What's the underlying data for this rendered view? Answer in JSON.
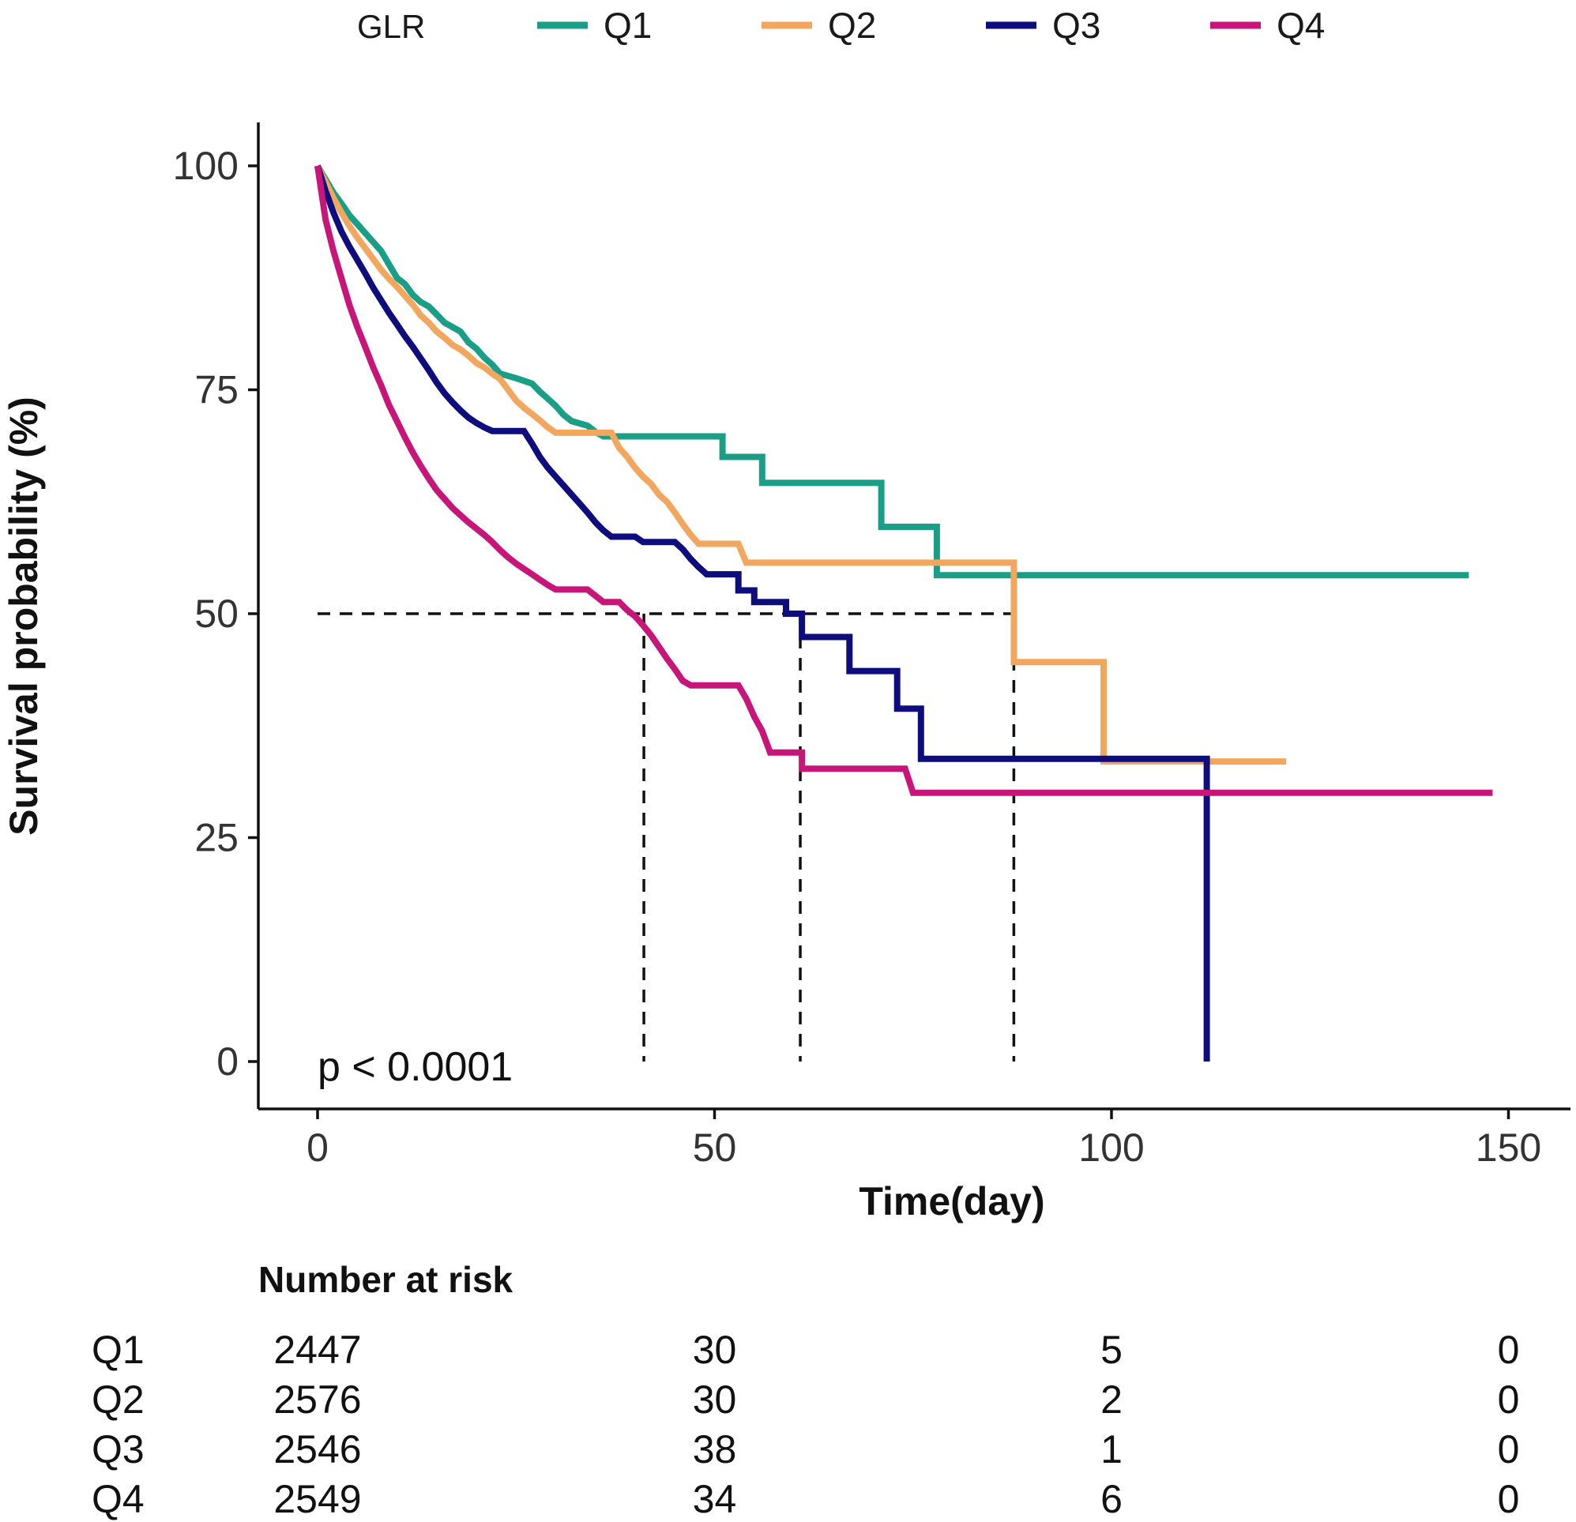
{
  "legend": {
    "title": "GLR",
    "entries": [
      {
        "label": "Q1",
        "color": "#1A9E86"
      },
      {
        "label": "Q2",
        "color": "#F2A65E"
      },
      {
        "label": "Q3",
        "color": "#0D0D7E"
      },
      {
        "label": "Q4",
        "color": "#C8157A"
      }
    ]
  },
  "chart_data": {
    "type": "line",
    "subtype": "kaplan-meier",
    "title": "",
    "xlabel": "Time(day)",
    "ylabel": "Survival probability (%)",
    "xlim": [
      -7.5,
      157.5
    ],
    "ylim": [
      -5,
      105
    ],
    "xticks": [
      0,
      50,
      100,
      150
    ],
    "yticks": [
      0,
      25,
      50,
      75,
      100
    ],
    "grid": false,
    "legend_position": "top",
    "annotation": "p < 0.0001",
    "median_reference": {
      "y": 50,
      "x_start": 0,
      "x_end": 87.7,
      "medians": [
        41.1,
        60.8,
        87.7
      ]
    },
    "series": [
      {
        "name": "Q1",
        "color": "#1A9E86",
        "points": [
          [
            0,
            100
          ],
          [
            1,
            98.5
          ],
          [
            2,
            97
          ],
          [
            3,
            95.8
          ],
          [
            4,
            94.5
          ],
          [
            5,
            93.5
          ],
          [
            6,
            92.5
          ],
          [
            7,
            91.5
          ],
          [
            8,
            90.5
          ],
          [
            9,
            89
          ],
          [
            10,
            87.5
          ],
          [
            11,
            86.8
          ],
          [
            12,
            85.6
          ],
          [
            13,
            84.8
          ],
          [
            14,
            84.3
          ],
          [
            15,
            83.4
          ],
          [
            16,
            82.5
          ],
          [
            17,
            82
          ],
          [
            18,
            81.5
          ],
          [
            19,
            80.3
          ],
          [
            20,
            79.6
          ],
          [
            21,
            78.6
          ],
          [
            22,
            77.8
          ],
          [
            23,
            76.8
          ],
          [
            25,
            76.3
          ],
          [
            27,
            75.7
          ],
          [
            28,
            74.8
          ],
          [
            29,
            74
          ],
          [
            30,
            73.2
          ],
          [
            31,
            72.2
          ],
          [
            32,
            71.5
          ],
          [
            34,
            71
          ],
          [
            35,
            70.3
          ],
          [
            36,
            69.8
          ],
          [
            51,
            69.8
          ],
          [
            51,
            67.5
          ],
          [
            56,
            67.5
          ],
          [
            56,
            64.6
          ],
          [
            71,
            64.6
          ],
          [
            71,
            59.7
          ],
          [
            78,
            59.7
          ],
          [
            78,
            54.3
          ],
          [
            145,
            54.3
          ]
        ]
      },
      {
        "name": "Q2",
        "color": "#F2A65E",
        "points": [
          [
            0,
            100
          ],
          [
            1,
            98.2
          ],
          [
            2,
            96.4
          ],
          [
            3,
            94.8
          ],
          [
            4,
            93.3
          ],
          [
            5,
            92
          ],
          [
            6,
            90.8
          ],
          [
            7,
            89.6
          ],
          [
            8,
            88.4
          ],
          [
            9,
            87.4
          ],
          [
            10,
            86.5
          ],
          [
            11,
            85.5
          ],
          [
            12,
            84.5
          ],
          [
            13,
            83.3
          ],
          [
            14,
            82.5
          ],
          [
            15,
            81.5
          ],
          [
            16,
            80.8
          ],
          [
            17,
            80
          ],
          [
            18,
            79.5
          ],
          [
            19,
            78.8
          ],
          [
            20,
            78
          ],
          [
            21,
            77.5
          ],
          [
            22,
            76.8
          ],
          [
            23,
            76.2
          ],
          [
            24,
            75
          ],
          [
            25,
            73.8
          ],
          [
            26,
            73
          ],
          [
            27,
            72.3
          ],
          [
            28,
            71.6
          ],
          [
            29,
            70.8
          ],
          [
            30,
            70.2
          ],
          [
            37,
            70.2
          ],
          [
            38,
            68.5
          ],
          [
            39,
            67.5
          ],
          [
            40,
            66.3
          ],
          [
            41,
            65.3
          ],
          [
            42,
            64.5
          ],
          [
            43,
            63.3
          ],
          [
            44,
            62.5
          ],
          [
            45,
            61.3
          ],
          [
            46,
            60
          ],
          [
            47,
            58.8
          ],
          [
            48,
            57.8
          ],
          [
            53,
            57.8
          ],
          [
            54,
            55.7
          ],
          [
            87.7,
            55.7
          ],
          [
            87.7,
            44.6
          ],
          [
            99,
            44.6
          ],
          [
            99,
            33.5
          ],
          [
            122,
            33.5
          ]
        ]
      },
      {
        "name": "Q3",
        "color": "#0D0D7E",
        "points": [
          [
            0,
            100
          ],
          [
            1,
            97.2
          ],
          [
            2,
            94.8
          ],
          [
            3,
            92.7
          ],
          [
            4,
            91
          ],
          [
            5,
            89.5
          ],
          [
            6,
            88
          ],
          [
            7,
            86.4
          ],
          [
            8,
            85
          ],
          [
            9,
            83.6
          ],
          [
            10,
            82.3
          ],
          [
            11,
            81
          ],
          [
            12,
            79.8
          ],
          [
            13,
            78.5
          ],
          [
            14,
            77.2
          ],
          [
            15,
            75.8
          ],
          [
            16,
            74.6
          ],
          [
            17,
            73.6
          ],
          [
            18,
            72.7
          ],
          [
            19,
            71.9
          ],
          [
            20,
            71.3
          ],
          [
            21,
            70.8
          ],
          [
            22,
            70.4
          ],
          [
            26,
            70.4
          ],
          [
            27,
            69
          ],
          [
            28,
            67.5
          ],
          [
            29,
            66.3
          ],
          [
            30,
            65.3
          ],
          [
            31,
            64.3
          ],
          [
            32,
            63.3
          ],
          [
            33,
            62.3
          ],
          [
            34,
            61.3
          ],
          [
            35,
            60.2
          ],
          [
            36,
            59.3
          ],
          [
            37,
            58.6
          ],
          [
            40,
            58.6
          ],
          [
            41,
            58
          ],
          [
            45,
            58
          ],
          [
            46,
            57.2
          ],
          [
            47,
            56.1
          ],
          [
            48,
            55.2
          ],
          [
            49,
            54.4
          ],
          [
            53,
            54.4
          ],
          [
            53,
            52.6
          ],
          [
            55,
            52.6
          ],
          [
            55,
            51.3
          ],
          [
            59,
            51.3
          ],
          [
            59,
            50
          ],
          [
            61,
            50
          ],
          [
            61,
            47.4
          ],
          [
            67,
            47.4
          ],
          [
            67,
            43.6
          ],
          [
            73,
            43.6
          ],
          [
            73,
            39.4
          ],
          [
            76,
            39.4
          ],
          [
            76,
            33.8
          ],
          [
            112,
            33.8
          ],
          [
            112,
            0
          ]
        ]
      },
      {
        "name": "Q4",
        "color": "#C8157A",
        "points": [
          [
            0,
            100
          ],
          [
            0.5,
            97
          ],
          [
            1,
            94
          ],
          [
            2,
            90.5
          ],
          [
            3,
            87.5
          ],
          [
            4,
            84.5
          ],
          [
            5,
            82
          ],
          [
            6,
            79.8
          ],
          [
            7,
            77.5
          ],
          [
            8,
            75.5
          ],
          [
            9,
            73.3
          ],
          [
            10,
            71.5
          ],
          [
            11,
            69.7
          ],
          [
            12,
            68
          ],
          [
            13,
            66.5
          ],
          [
            14,
            65.1
          ],
          [
            15,
            63.8
          ],
          [
            16,
            62.8
          ],
          [
            17,
            61.8
          ],
          [
            18,
            61
          ],
          [
            19,
            60.2
          ],
          [
            20,
            59.5
          ],
          [
            21,
            58.8
          ],
          [
            22,
            58
          ],
          [
            23,
            57.1
          ],
          [
            24,
            56.3
          ],
          [
            25,
            55.6
          ],
          [
            26,
            55
          ],
          [
            27,
            54.4
          ],
          [
            28,
            53.8
          ],
          [
            29,
            53.2
          ],
          [
            30,
            52.7
          ],
          [
            34,
            52.7
          ],
          [
            35,
            52
          ],
          [
            36,
            51.3
          ],
          [
            38,
            51.3
          ],
          [
            39,
            50.4
          ],
          [
            40,
            49.7
          ],
          [
            41,
            48.7
          ],
          [
            42,
            47.6
          ],
          [
            43,
            46.3
          ],
          [
            44,
            45
          ],
          [
            45,
            43.8
          ],
          [
            46,
            42.5
          ],
          [
            47,
            42
          ],
          [
            53,
            42
          ],
          [
            54,
            40.5
          ],
          [
            55,
            38.5
          ],
          [
            56,
            36.9
          ],
          [
            57,
            34.5
          ],
          [
            61,
            34.5
          ],
          [
            61,
            32.7
          ],
          [
            74,
            32.7
          ],
          [
            75,
            30
          ],
          [
            148,
            30
          ]
        ]
      }
    ]
  },
  "risk_table": {
    "title": "Number at risk",
    "times": [
      0,
      50,
      100,
      150
    ],
    "rows": [
      {
        "label": "Q1",
        "values": [
          "2447",
          "30",
          "5",
          "0"
        ]
      },
      {
        "label": "Q2",
        "values": [
          "2576",
          "30",
          "2",
          "0"
        ]
      },
      {
        "label": "Q3",
        "values": [
          "2546",
          "38",
          "1",
          "0"
        ]
      },
      {
        "label": "Q4",
        "values": [
          "2549",
          "34",
          "6",
          "0"
        ]
      }
    ]
  }
}
